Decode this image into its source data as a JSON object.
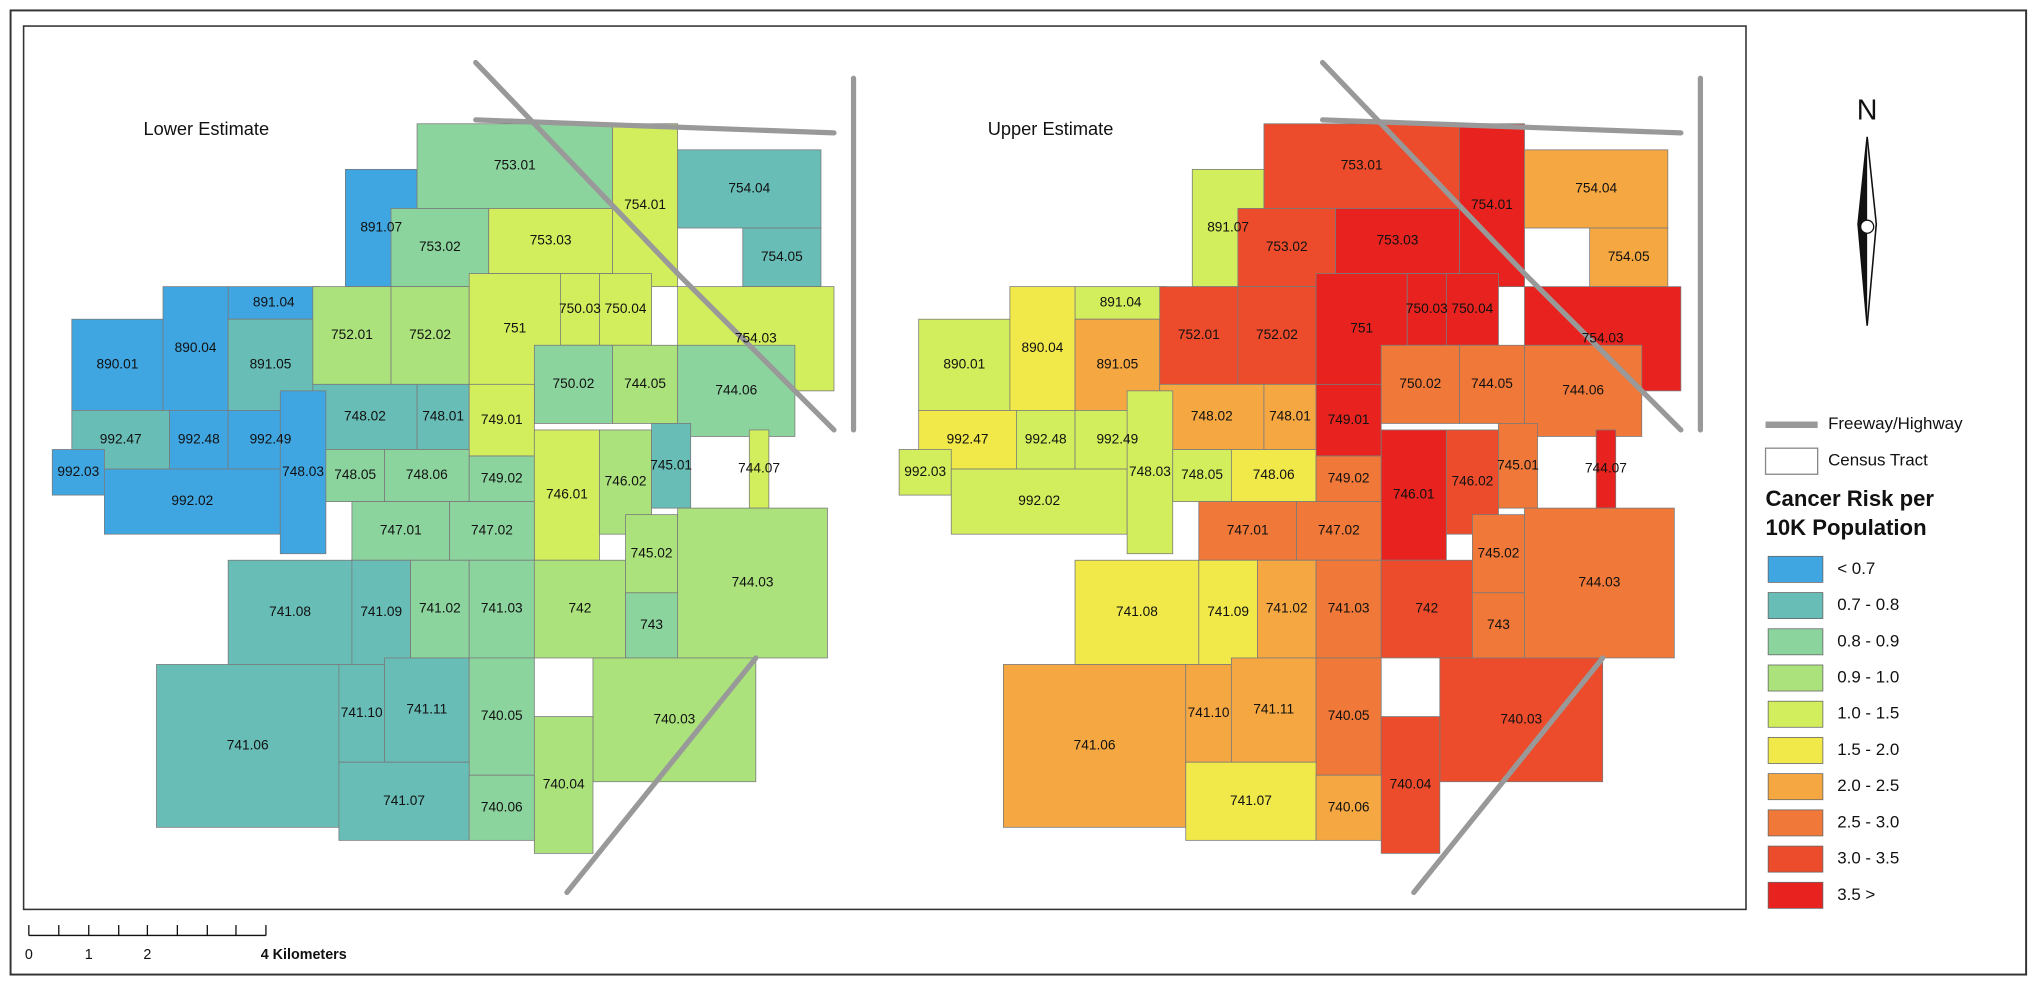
{
  "maps": [
    {
      "title": "Lower Estimate",
      "tracts": [
        {
          "label": "891.07",
          "color": "#3fa6e2"
        },
        {
          "label": "753.01",
          "color": "#8cd49e"
        },
        {
          "label": "754.01",
          "color": "#d3ee5c"
        },
        {
          "label": "754.04",
          "color": "#68bdb7"
        },
        {
          "label": "754.05",
          "color": "#68bdb7"
        },
        {
          "label": "753.02",
          "color": "#8cd49e"
        },
        {
          "label": "753.03",
          "color": "#d3ee5c"
        },
        {
          "label": "891.04",
          "color": "#3fa6e2"
        },
        {
          "label": "890.01",
          "color": "#3fa6e2"
        },
        {
          "label": "890.04",
          "color": "#3fa6e2"
        },
        {
          "label": "891.05",
          "color": "#68bdb7"
        },
        {
          "label": "752.01",
          "color": "#abe27c"
        },
        {
          "label": "752.02",
          "color": "#abe27c"
        },
        {
          "label": "751",
          "color": "#d3ee5c"
        },
        {
          "label": "750.03",
          "color": "#d3ee5c"
        },
        {
          "label": "750.04",
          "color": "#d3ee5c"
        },
        {
          "label": "754.03",
          "color": "#d3ee5c"
        },
        {
          "label": "744.05",
          "color": "#abe27c"
        },
        {
          "label": "744.06",
          "color": "#8cd49e"
        },
        {
          "label": "750.02",
          "color": "#8cd49e"
        },
        {
          "label": "748.02",
          "color": "#68bdb7"
        },
        {
          "label": "748.01",
          "color": "#68bdb7"
        },
        {
          "label": "749.01",
          "color": "#d3ee5c"
        },
        {
          "label": "992.47",
          "color": "#68bdb7"
        },
        {
          "label": "992.48",
          "color": "#3fa6e2"
        },
        {
          "label": "992.49",
          "color": "#3fa6e2"
        },
        {
          "label": "992.03",
          "color": "#3fa6e2"
        },
        {
          "label": "992.02",
          "color": "#3fa6e2"
        },
        {
          "label": "748.03",
          "color": "#3fa6e2"
        },
        {
          "label": "748.05",
          "color": "#8cd49e"
        },
        {
          "label": "748.06",
          "color": "#8cd49e"
        },
        {
          "label": "749.02",
          "color": "#8cd49e"
        },
        {
          "label": "746.01",
          "color": "#d3ee5c"
        },
        {
          "label": "746.02",
          "color": "#abe27c"
        },
        {
          "label": "745.01",
          "color": "#68bdb7"
        },
        {
          "label": "744.07",
          "color": "#d3ee5c"
        },
        {
          "label": "747.01",
          "color": "#8cd49e"
        },
        {
          "label": "747.02",
          "color": "#8cd49e"
        },
        {
          "label": "745.02",
          "color": "#abe27c"
        },
        {
          "label": "744.03",
          "color": "#abe27c"
        },
        {
          "label": "741.08",
          "color": "#68bdb7"
        },
        {
          "label": "741.09",
          "color": "#68bdb7"
        },
        {
          "label": "741.02",
          "color": "#8cd49e"
        },
        {
          "label": "741.03",
          "color": "#8cd49e"
        },
        {
          "label": "742",
          "color": "#abe27c"
        },
        {
          "label": "743",
          "color": "#8cd49e"
        },
        {
          "label": "741.06",
          "color": "#68bdb7"
        },
        {
          "label": "741.10",
          "color": "#68bdb7"
        },
        {
          "label": "741.11",
          "color": "#68bdb7"
        },
        {
          "label": "740.05",
          "color": "#8cd49e"
        },
        {
          "label": "740.03",
          "color": "#abe27c"
        },
        {
          "label": "740.04",
          "color": "#abe27c"
        },
        {
          "label": "741.07",
          "color": "#68bdb7"
        },
        {
          "label": "740.06",
          "color": "#8cd49e"
        }
      ]
    },
    {
      "title": "Upper Estimate",
      "tracts": [
        {
          "label": "891.07",
          "color": "#d3ee5c"
        },
        {
          "label": "753.01",
          "color": "#ec4c2c"
        },
        {
          "label": "754.01",
          "color": "#e8231f"
        },
        {
          "label": "754.04",
          "color": "#f5a742"
        },
        {
          "label": "754.05",
          "color": "#f5a742"
        },
        {
          "label": "753.02",
          "color": "#ec4c2c"
        },
        {
          "label": "753.03",
          "color": "#e8231f"
        },
        {
          "label": "891.04",
          "color": "#d3ee5c"
        },
        {
          "label": "890.01",
          "color": "#d3ee5c"
        },
        {
          "label": "890.04",
          "color": "#f1e84a"
        },
        {
          "label": "891.05",
          "color": "#f5a742"
        },
        {
          "label": "752.01",
          "color": "#ec4c2c"
        },
        {
          "label": "752.02",
          "color": "#ec4c2c"
        },
        {
          "label": "751",
          "color": "#e8231f"
        },
        {
          "label": "750.03",
          "color": "#e8231f"
        },
        {
          "label": "750.04",
          "color": "#e8231f"
        },
        {
          "label": "754.03",
          "color": "#e8231f"
        },
        {
          "label": "744.05",
          "color": "#f07838"
        },
        {
          "label": "744.06",
          "color": "#f07838"
        },
        {
          "label": "750.02",
          "color": "#f07838"
        },
        {
          "label": "748.02",
          "color": "#f5a742"
        },
        {
          "label": "748.01",
          "color": "#f5a742"
        },
        {
          "label": "749.01",
          "color": "#e8231f"
        },
        {
          "label": "992.47",
          "color": "#f1e84a"
        },
        {
          "label": "992.48",
          "color": "#d3ee5c"
        },
        {
          "label": "992.49",
          "color": "#d3ee5c"
        },
        {
          "label": "992.03",
          "color": "#d3ee5c"
        },
        {
          "label": "992.02",
          "color": "#d3ee5c"
        },
        {
          "label": "748.03",
          "color": "#d3ee5c"
        },
        {
          "label": "748.05",
          "color": "#d3ee5c"
        },
        {
          "label": "748.06",
          "color": "#f1e84a"
        },
        {
          "label": "749.02",
          "color": "#f07838"
        },
        {
          "label": "746.01",
          "color": "#e8231f"
        },
        {
          "label": "746.02",
          "color": "#ec4c2c"
        },
        {
          "label": "745.01",
          "color": "#f07838"
        },
        {
          "label": "744.07",
          "color": "#e8231f"
        },
        {
          "label": "747.01",
          "color": "#f07838"
        },
        {
          "label": "747.02",
          "color": "#f07838"
        },
        {
          "label": "745.02",
          "color": "#f07838"
        },
        {
          "label": "744.03",
          "color": "#f07838"
        },
        {
          "label": "741.08",
          "color": "#f1e84a"
        },
        {
          "label": "741.09",
          "color": "#f1e84a"
        },
        {
          "label": "741.02",
          "color": "#f5a742"
        },
        {
          "label": "741.03",
          "color": "#f07838"
        },
        {
          "label": "742",
          "color": "#ec4c2c"
        },
        {
          "label": "743",
          "color": "#f07838"
        },
        {
          "label": "741.06",
          "color": "#f5a742"
        },
        {
          "label": "741.10",
          "color": "#f5a742"
        },
        {
          "label": "741.11",
          "color": "#f5a742"
        },
        {
          "label": "740.05",
          "color": "#f07838"
        },
        {
          "label": "740.03",
          "color": "#ec4c2c"
        },
        {
          "label": "740.04",
          "color": "#ec4c2c"
        },
        {
          "label": "741.07",
          "color": "#f1e84a"
        },
        {
          "label": "740.06",
          "color": "#f5a742"
        }
      ]
    }
  ],
  "north_arrow": {
    "label": "N"
  },
  "legend": {
    "line_items": [
      {
        "label": "Freeway/Highway",
        "color": "#999999"
      },
      {
        "label": "Census Tract",
        "color": "#ffffff"
      }
    ],
    "title_lines": [
      "Cancer Risk per",
      "10K Population"
    ],
    "classes": [
      {
        "label": "< 0.7",
        "color": "#3fa6e2"
      },
      {
        "label": "0.7 - 0.8",
        "color": "#68bdb7"
      },
      {
        "label": "0.8 - 0.9",
        "color": "#8cd49e"
      },
      {
        "label": "0.9 - 1.0",
        "color": "#abe27c"
      },
      {
        "label": "1.0 - 1.5",
        "color": "#d3ee5c"
      },
      {
        "label": "1.5 - 2.0",
        "color": "#f1e84a"
      },
      {
        "label": "2.0 - 2.5",
        "color": "#f5a742"
      },
      {
        "label": "2.5 - 3.0",
        "color": "#f07838"
      },
      {
        "label": "3.0 - 3.5",
        "color": "#ec4c2c"
      },
      {
        "label": "3.5 >",
        "color": "#e8231f"
      }
    ]
  },
  "scale_bar": {
    "labels": [
      "0",
      "1",
      "2",
      "4 Kilometers"
    ]
  }
}
